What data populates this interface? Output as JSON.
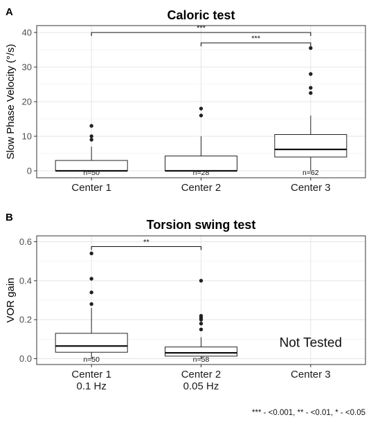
{
  "footnote": "*** - <0.001, ** - <0.01, * - <0.05",
  "chart_data": [
    {
      "panel_label": "A",
      "type": "box",
      "title": "Caloric test",
      "xlabel": "",
      "ylabel": "Slow Phase Velocity (°/s)",
      "ylim": [
        -2,
        42
      ],
      "yticks": [
        0,
        10,
        20,
        30,
        40
      ],
      "ytick_labels": [
        "0",
        "10",
        "20",
        "30",
        "40"
      ],
      "grid": true,
      "categories": [
        {
          "label": [
            "Center 1"
          ],
          "tested": true,
          "n_label": "n=50",
          "q1": 0,
          "median": 0,
          "q3": 3,
          "whisker_low": 0,
          "whisker_high": 7,
          "outliers": [
            9,
            10,
            13
          ]
        },
        {
          "label": [
            "Center 2"
          ],
          "tested": true,
          "n_label": "n=28",
          "q1": 0,
          "median": 0,
          "q3": 4.3,
          "whisker_low": 0,
          "whisker_high": 10,
          "outliers": [
            16,
            18
          ]
        },
        {
          "label": [
            "Center 3"
          ],
          "tested": true,
          "n_label": "n=62",
          "q1": 4,
          "median": 6.2,
          "q3": 10.5,
          "whisker_low": 0,
          "whisker_high": 16,
          "outliers": [
            22.5,
            24,
            28,
            35.5
          ]
        }
      ],
      "significance": [
        {
          "from": 0,
          "to": 2,
          "y": 40,
          "label": "***"
        },
        {
          "from": 1,
          "to": 2,
          "y": 37,
          "label": "***"
        }
      ]
    },
    {
      "panel_label": "B",
      "type": "box",
      "title": "Torsion swing test",
      "xlabel": "",
      "ylabel": "VOR gain",
      "ylim": [
        -0.03,
        0.63
      ],
      "yticks": [
        0,
        0.2,
        0.4,
        0.6
      ],
      "ytick_labels": [
        "0.0",
        "0.2",
        "0.4",
        "0.6"
      ],
      "grid": true,
      "categories": [
        {
          "label": [
            "Center 1",
            "0.1 Hz"
          ],
          "tested": true,
          "n_label": "n=50",
          "q1": 0.033,
          "median": 0.065,
          "q3": 0.13,
          "whisker_low": 0,
          "whisker_high": 0.26,
          "outliers": [
            0.28,
            0.34,
            0.41,
            0.54
          ]
        },
        {
          "label": [
            "Center 2",
            "0.05  Hz"
          ],
          "tested": true,
          "n_label": "n=58",
          "q1": 0.013,
          "median": 0.03,
          "q3": 0.06,
          "whisker_low": 0,
          "whisker_high": 0.11,
          "outliers": [
            0.15,
            0.18,
            0.2,
            0.21,
            0.22,
            0.4
          ]
        },
        {
          "label": [
            "Center 3"
          ],
          "tested": false,
          "annotation": "Not Tested"
        }
      ],
      "significance": [
        {
          "from": 0,
          "to": 1,
          "y": 0.575,
          "label": "**"
        }
      ]
    }
  ]
}
